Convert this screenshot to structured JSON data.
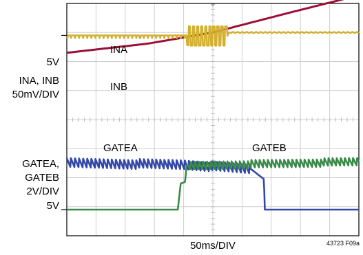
{
  "chart_data": {
    "type": "line",
    "title": "",
    "xlabel": "50ms/DIV",
    "figure_code": "43723 F09a",
    "grid": true,
    "divisions": {
      "x": 10,
      "y": 8
    },
    "colors": {
      "ina": "#d4b030",
      "inb": "#9a1035",
      "gatea": "#3a8a4a",
      "gateb": "#3348a8"
    },
    "upper": {
      "ylabel": "INA, INB",
      "yscale": "50mV/DIV",
      "ref_label": "5V",
      "ref_div": 1.1,
      "series": [
        {
          "name": "INA",
          "values": [
            {
              "x": 0,
              "y": 0
            },
            {
              "x": 4.1,
              "y": 0
            },
            {
              "x": 4.2,
              "y": -0.02
            },
            {
              "x": 5.5,
              "y": -0.02
            },
            {
              "x": 5.55,
              "y": 0.1
            },
            {
              "x": 10,
              "y": 0.1
            }
          ]
        },
        {
          "name": "INB",
          "values": [
            {
              "x": 0,
              "y": -0.6
            },
            {
              "x": 2.8,
              "y": -0.28
            },
            {
              "x": 5,
              "y": 0.1
            },
            {
              "x": 7.5,
              "y": 0.75
            },
            {
              "x": 10,
              "y": 1.38
            }
          ]
        }
      ]
    },
    "lower": {
      "ylabel": "GATEA, GATEB",
      "yscale": "2V/DIV",
      "ref_label": "5V",
      "ref_div": 7.1,
      "series": [
        {
          "name": "GATEA",
          "values": [
            {
              "x": 0,
              "y": 0
            },
            {
              "x": 3.8,
              "y": 0
            },
            {
              "x": 3.9,
              "y": 0.9
            },
            {
              "x": 4.05,
              "y": 0.95
            },
            {
              "x": 4.1,
              "y": 1.5
            },
            {
              "x": 4.6,
              "y": 1.52
            },
            {
              "x": 10,
              "y": 1.65
            }
          ]
        },
        {
          "name": "GATEB",
          "values": [
            {
              "x": 0,
              "y": 1.6
            },
            {
              "x": 4.0,
              "y": 1.55
            },
            {
              "x": 6.3,
              "y": 1.4
            },
            {
              "x": 6.75,
              "y": 1.05
            },
            {
              "x": 6.78,
              "y": 0
            },
            {
              "x": 10,
              "y": 0
            }
          ]
        }
      ]
    }
  }
}
